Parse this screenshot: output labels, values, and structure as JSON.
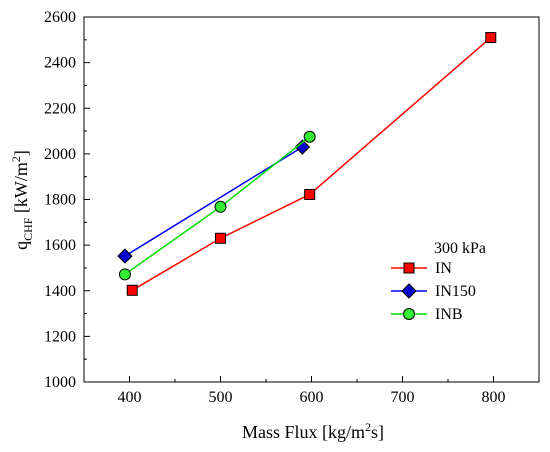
{
  "chart_data": {
    "type": "line",
    "xlabel": {
      "main": "Mass Flux [kg/m",
      "sup": "2",
      "tail": "s]"
    },
    "ylabel": {
      "q": "q",
      "sub": "CHF",
      "mid": " [kW/m",
      "sup": "2",
      "tail": "]"
    },
    "xlim": [
      350,
      850
    ],
    "ylim": [
      1000,
      2600
    ],
    "x_ticks": [
      400,
      500,
      600,
      700,
      800
    ],
    "y_ticks": [
      1000,
      1200,
      1400,
      1600,
      1800,
      2000,
      2200,
      2400,
      2600
    ],
    "grid": false,
    "legend_title": "300 kPa",
    "legend_placement": "right-middle",
    "series": [
      {
        "name": "IN",
        "color": "#ff0000",
        "marker": "square",
        "fill": "#ff0000",
        "x": [
          403,
          500,
          598,
          797
        ],
        "y": [
          1402,
          1630,
          1822,
          2510
        ]
      },
      {
        "name": "IN150",
        "color": "#0000ff",
        "marker": "diamond",
        "fill": "#0000cc",
        "x": [
          395,
          590
        ],
        "y": [
          1552,
          2030
        ]
      },
      {
        "name": "INB",
        "color": "#00dd00",
        "marker": "circle",
        "fill": "#33ee33",
        "x": [
          395,
          500,
          598
        ],
        "y": [
          1472,
          1768,
          2075
        ]
      }
    ]
  }
}
